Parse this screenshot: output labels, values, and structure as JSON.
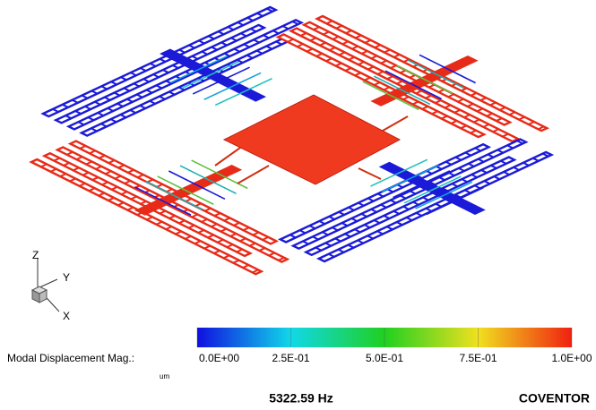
{
  "triad": {
    "z": "Z",
    "y": "Y",
    "x": "X"
  },
  "colorbar": {
    "label": "Modal Displacement Mag.:",
    "unit": "um",
    "range": [
      0,
      1
    ],
    "ticks": [
      {
        "value": 0,
        "label": "0.0E+00"
      },
      {
        "value": 0.25,
        "label": "2.5E-01"
      },
      {
        "value": 0.5,
        "label": "5.0E-01"
      },
      {
        "value": 0.75,
        "label": "7.5E-01"
      },
      {
        "value": 1,
        "label": "1.0E+00"
      }
    ]
  },
  "frequency": "5322.59 Hz",
  "brand": "COVENTOR"
}
